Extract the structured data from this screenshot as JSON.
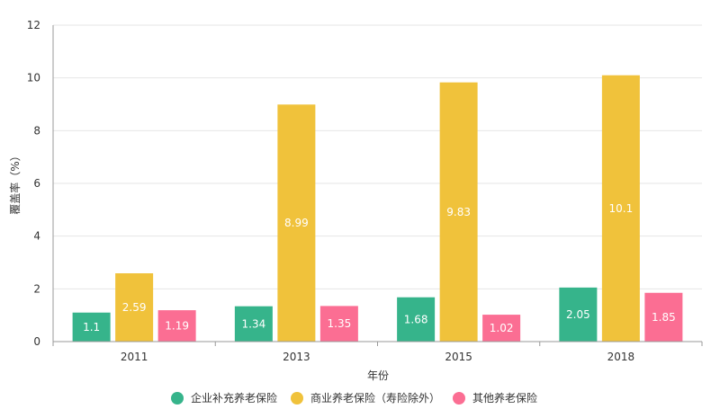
{
  "chart_data": {
    "type": "bar",
    "title": "",
    "xlabel": "年份",
    "ylabel": "覆盖率（%）",
    "ylim": [
      0,
      12
    ],
    "yticks": [
      0,
      2,
      4,
      6,
      8,
      10,
      12
    ],
    "grid": true,
    "legend_position": "bottom",
    "categories": [
      "2011",
      "2013",
      "2015",
      "2018"
    ],
    "series": [
      {
        "name": "企业补充养老保险",
        "color": "#36b48b",
        "values": [
          1.1,
          1.34,
          1.68,
          2.05
        ],
        "labels": [
          "1.1",
          "1.34",
          "1.68",
          "2.05"
        ]
      },
      {
        "name": "商业养老保险（寿险除外）",
        "color": "#f0c23b",
        "values": [
          2.59,
          8.99,
          9.83,
          10.1
        ],
        "labels": [
          "2.59",
          "8.99",
          "9.83",
          "10.1"
        ]
      },
      {
        "name": "其他养老保险",
        "color": "#fb6e93",
        "values": [
          1.19,
          1.35,
          1.02,
          1.85
        ],
        "labels": [
          "1.19",
          "1.35",
          "1.02",
          "1.85"
        ]
      }
    ]
  }
}
